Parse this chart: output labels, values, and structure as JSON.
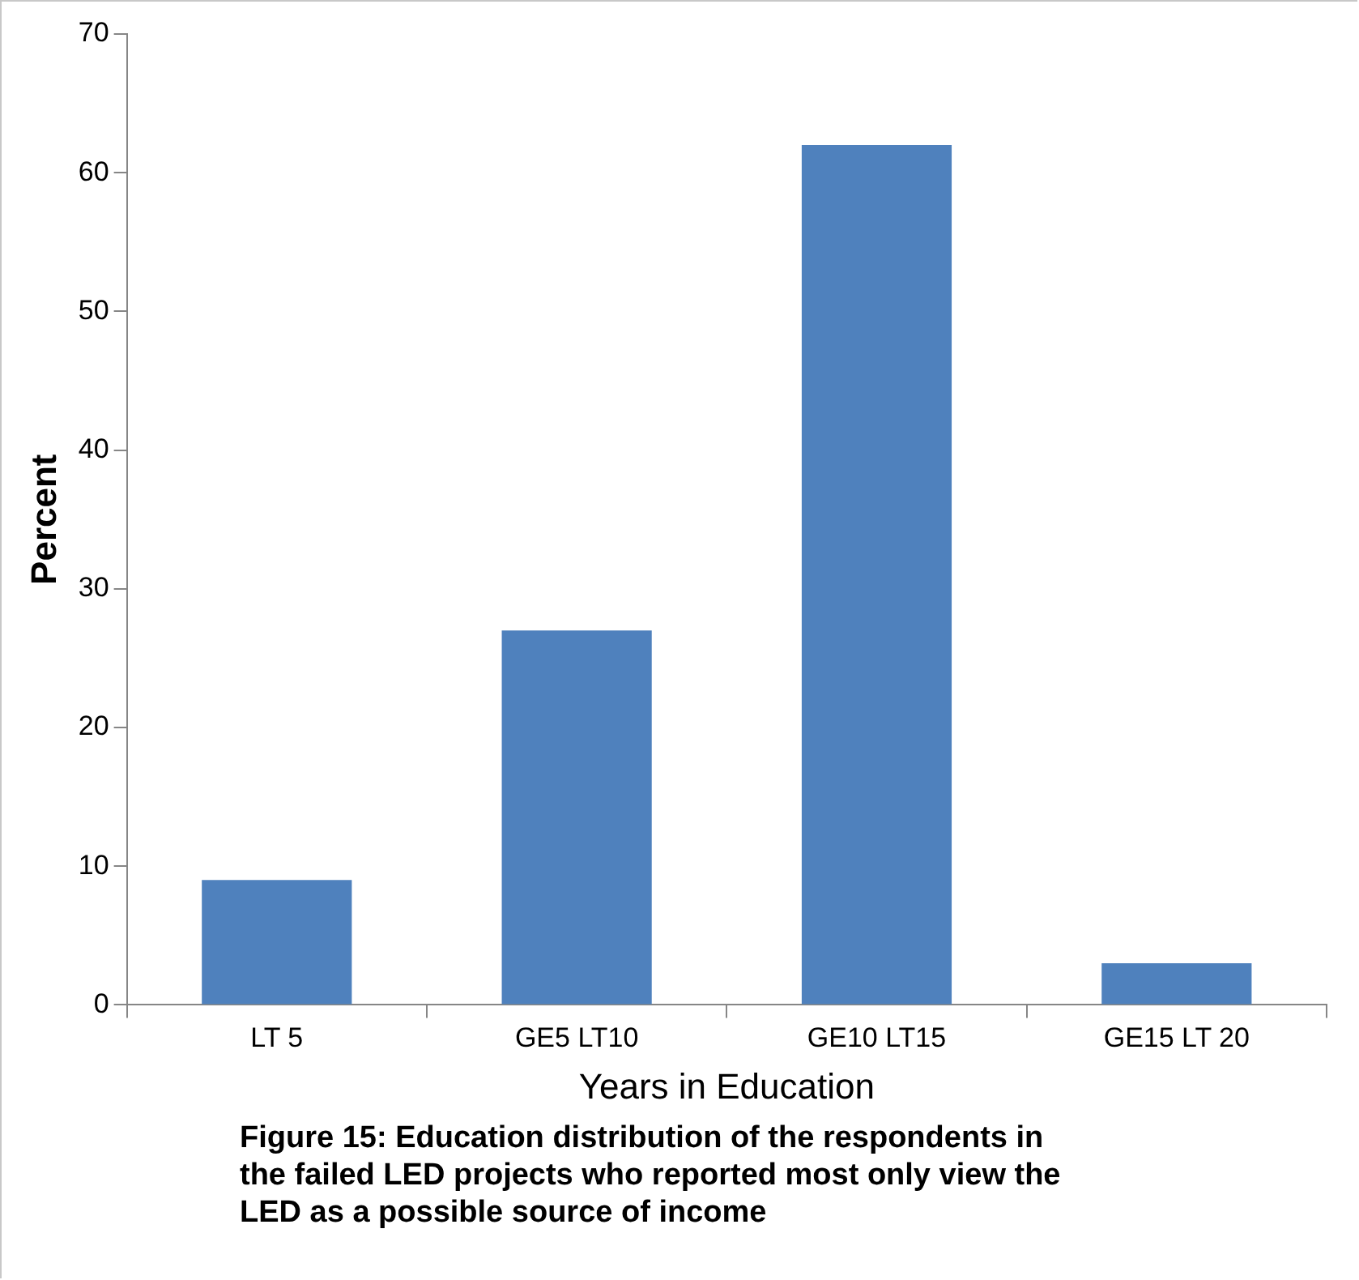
{
  "chart_data": {
    "type": "bar",
    "xlabel": "Years in Education",
    "ylabel": "Percent",
    "categories": [
      "LT 5",
      "GE5 LT10",
      "GE10 LT15",
      "GE15 LT 20"
    ],
    "values": [
      9,
      27,
      62,
      3
    ],
    "color": "#4f81bd",
    "ylim": [
      0,
      70
    ],
    "yticks": [
      0,
      10,
      20,
      30,
      40,
      50,
      60,
      70
    ],
    "annotations": [
      "Figure 15: Education distribution of the respondents in the failed LED projects who reported most only view the LED as a possible source of income"
    ]
  }
}
